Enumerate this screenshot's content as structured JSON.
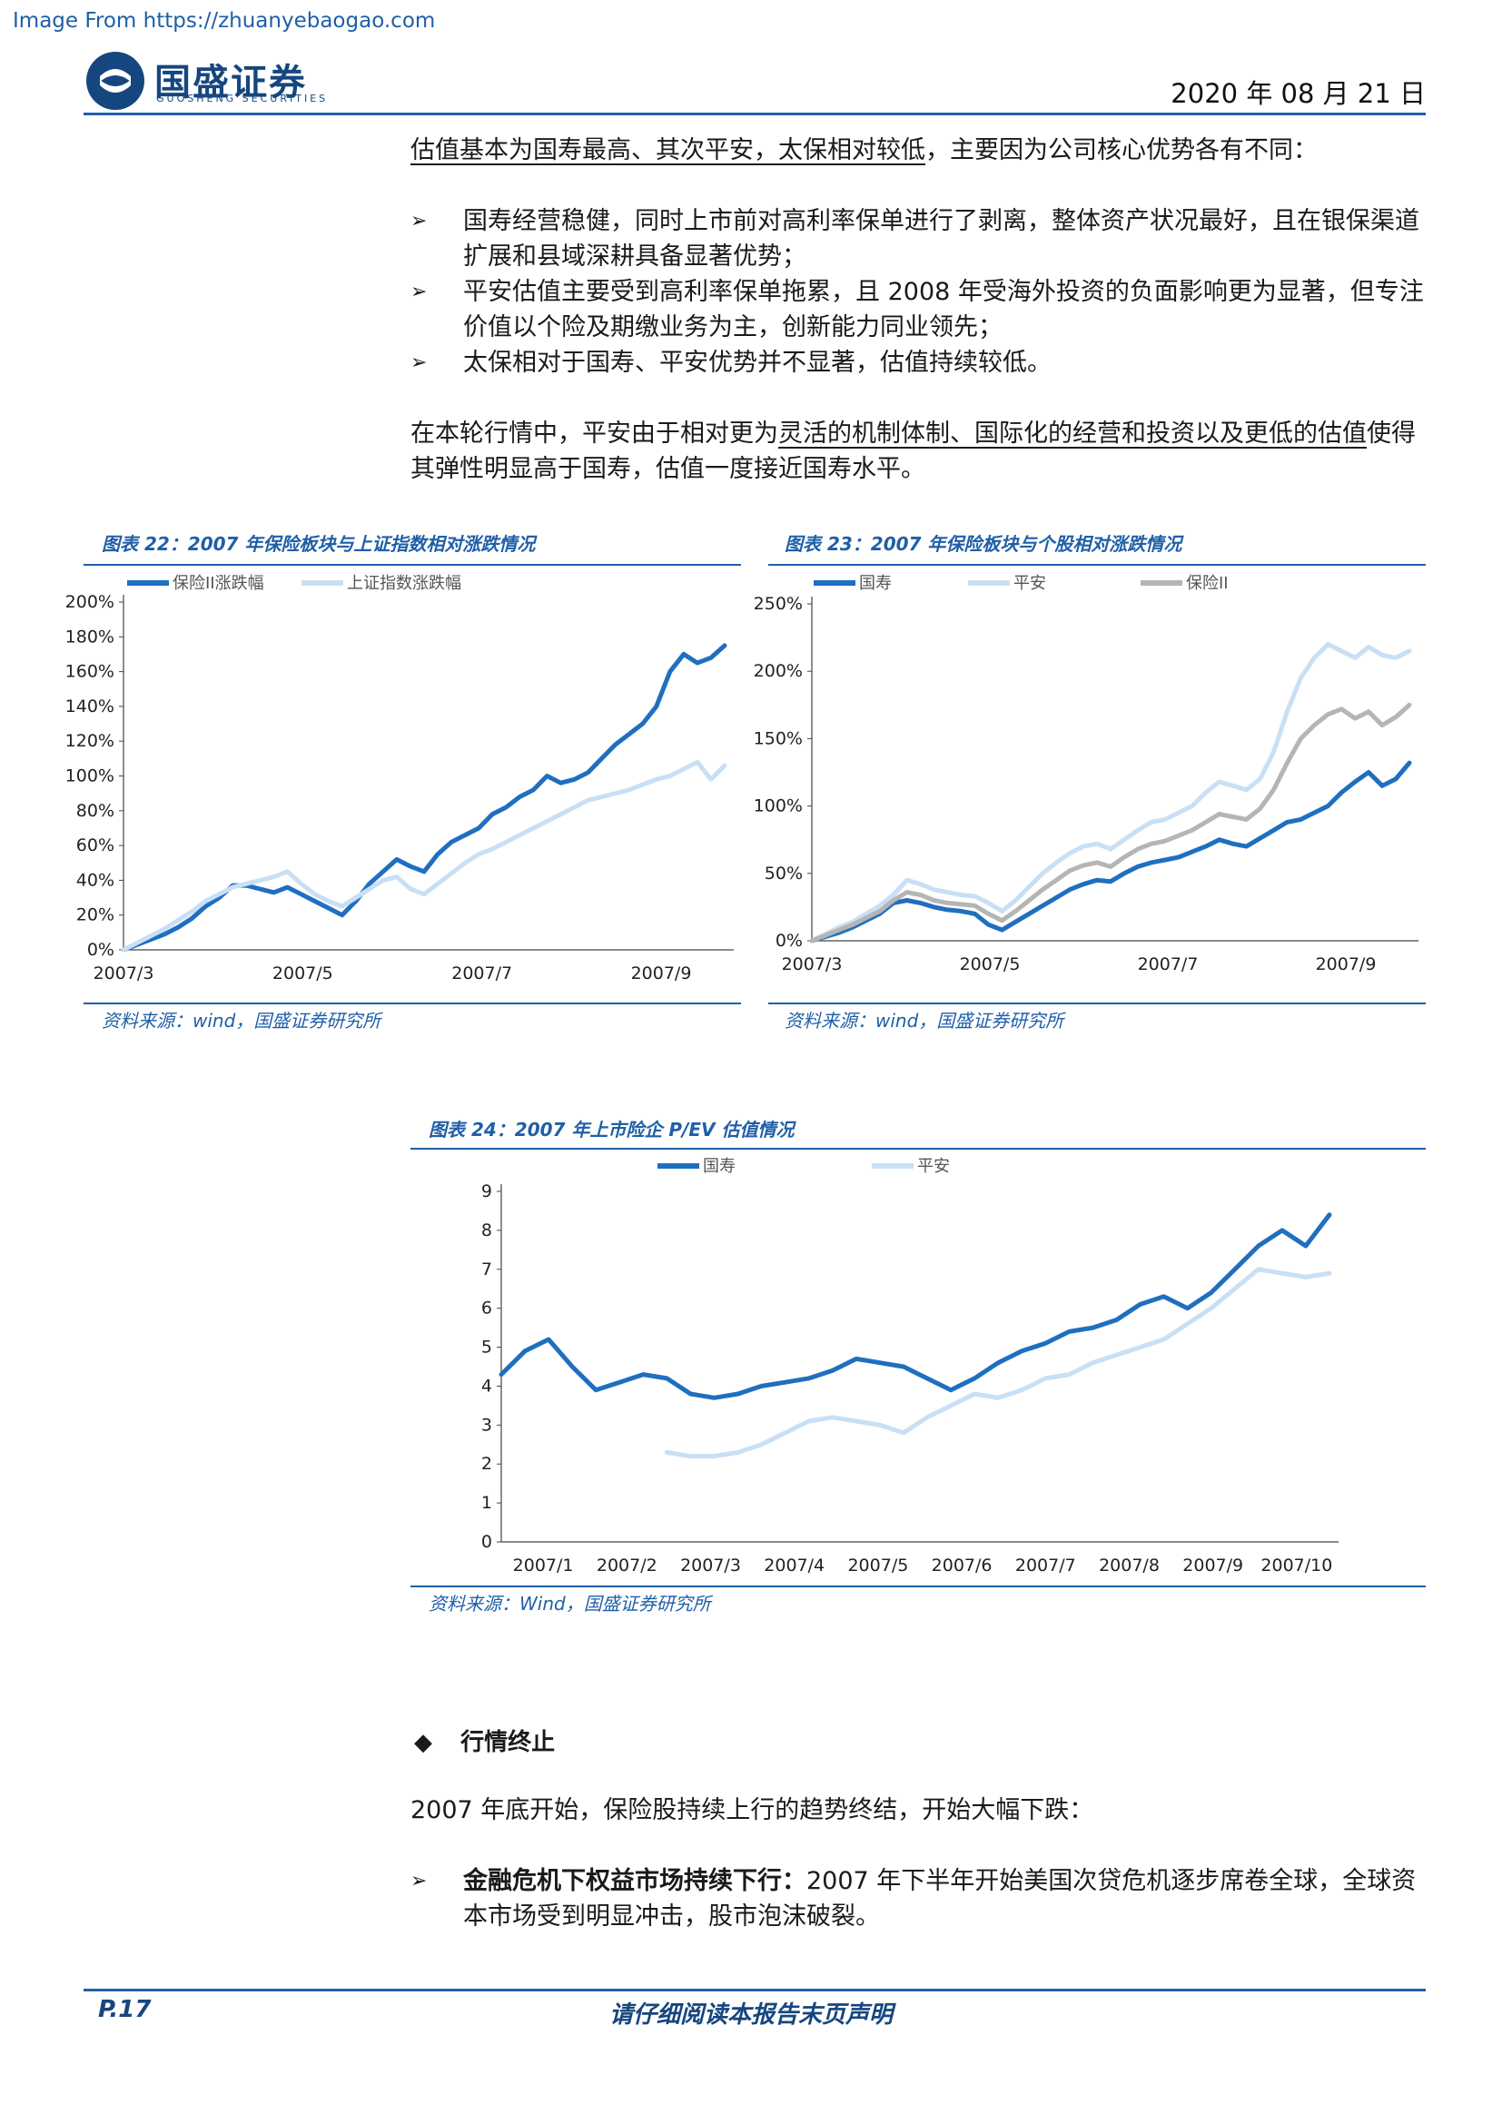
{
  "header": {
    "source_note": "Image From https://zhuanyebaogao.com",
    "logo_cn": "国盛证券",
    "logo_en": "GUOSHENG SECURITIES",
    "date": "2020 年 08 月 21 日"
  },
  "intro": {
    "underlined": "估值基本为国寿最高、其次平安，太保相对较低",
    "rest": "，主要因为公司核心优势各有不同："
  },
  "bullets1": [
    "国寿经营稳健，同时上市前对高利率保单进行了剥离，整体资产状况最好，且在银保渠道扩展和县域深耕具备显著优势；",
    "平安估值主要受到高利率保单拖累，且 2008 年受海外投资的负面影响更为显著，但专注价值以个险及期缴业务为主，创新能力同业领先；",
    "太保相对于国寿、平安优势并不显著，估值持续较低。"
  ],
  "para2": {
    "pre": "在本轮行情中，平安由于相对更为",
    "underlined": "灵活的机制体制、国际化的经营和投资以及更低的估值",
    "post": "使得其弹性明显高于国寿，估值一度接近国寿水平。"
  },
  "fig22": {
    "title": "图表 22：2007 年保险板块与上证指数相对涨跌情况",
    "source": "资料来源：wind，国盛证券研究所"
  },
  "fig23": {
    "title": "图表 23：2007 年保险板块与个股相对涨跌情况",
    "source": "资料来源：wind，国盛证券研究所"
  },
  "fig24": {
    "title": "图表 24：2007 年上市险企 P/EV 估值情况",
    "source": "资料来源：Wind，国盛证券研究所"
  },
  "chart_data": [
    {
      "type": "line",
      "x_labels": [
        "2007/3",
        "2007/5",
        "2007/7",
        "2007/9"
      ],
      "y_ticks": [
        "0%",
        "20%",
        "40%",
        "60%",
        "80%",
        "100%",
        "120%",
        "140%",
        "160%",
        "180%",
        "200%"
      ],
      "ylim": [
        0,
        200
      ],
      "legend_position": "top",
      "series": [
        {
          "name": "保险II涨跌幅",
          "color": "#1f6fc0",
          "values": [
            0,
            3,
            6,
            9,
            13,
            18,
            25,
            30,
            37,
            37,
            35,
            33,
            36,
            32,
            28,
            24,
            20,
            28,
            38,
            45,
            52,
            48,
            45,
            55,
            62,
            66,
            70,
            78,
            82,
            88,
            92,
            100,
            96,
            98,
            102,
            110,
            118,
            124,
            130,
            140,
            160,
            170,
            165,
            168,
            175
          ]
        },
        {
          "name": "上证指数涨跌幅",
          "color": "#c9dff5",
          "values": [
            0,
            4,
            8,
            12,
            17,
            22,
            28,
            32,
            36,
            38,
            40,
            42,
            45,
            38,
            32,
            28,
            25,
            30,
            35,
            40,
            42,
            35,
            32,
            38,
            44,
            50,
            55,
            58,
            62,
            66,
            70,
            74,
            78,
            82,
            86,
            88,
            90,
            92,
            95,
            98,
            100,
            104,
            108,
            98,
            106
          ]
        }
      ]
    },
    {
      "type": "line",
      "x_labels": [
        "2007/3",
        "2007/5",
        "2007/7",
        "2007/9"
      ],
      "y_ticks": [
        "0%",
        "50%",
        "100%",
        "150%",
        "200%",
        "250%"
      ],
      "ylim": [
        0,
        250
      ],
      "legend_position": "top",
      "series": [
        {
          "name": "国寿",
          "color": "#1f6fc0",
          "values": [
            0,
            3,
            6,
            10,
            15,
            20,
            28,
            30,
            28,
            25,
            23,
            22,
            20,
            12,
            8,
            14,
            20,
            26,
            32,
            38,
            42,
            45,
            44,
            50,
            55,
            58,
            60,
            62,
            66,
            70,
            75,
            72,
            70,
            76,
            82,
            88,
            90,
            95,
            100,
            110,
            118,
            125,
            115,
            120,
            132
          ]
        },
        {
          "name": "平安",
          "color": "#c9dff5",
          "values": [
            0,
            5,
            10,
            14,
            20,
            26,
            34,
            45,
            42,
            38,
            36,
            34,
            33,
            28,
            22,
            30,
            40,
            50,
            58,
            65,
            70,
            72,
            68,
            75,
            82,
            88,
            90,
            95,
            100,
            110,
            118,
            115,
            112,
            120,
            140,
            170,
            195,
            210,
            220,
            215,
            210,
            218,
            212,
            210,
            215
          ]
        },
        {
          "name": "保险II",
          "color": "#b5b5b5",
          "values": [
            0,
            4,
            8,
            12,
            17,
            22,
            30,
            36,
            34,
            30,
            28,
            27,
            26,
            20,
            15,
            22,
            30,
            38,
            45,
            52,
            56,
            58,
            55,
            62,
            68,
            72,
            74,
            78,
            82,
            88,
            94,
            92,
            90,
            98,
            112,
            132,
            150,
            160,
            168,
            172,
            165,
            170,
            160,
            166,
            175
          ]
        }
      ]
    },
    {
      "type": "line",
      "x_labels": [
        "2007/1",
        "2007/2",
        "2007/3",
        "2007/4",
        "2007/5",
        "2007/6",
        "2007/7",
        "2007/8",
        "2007/9",
        "2007/10"
      ],
      "y_ticks": [
        "0",
        "1",
        "2",
        "3",
        "4",
        "5",
        "6",
        "7",
        "8",
        "9"
      ],
      "ylim": [
        0,
        9
      ],
      "legend_position": "top",
      "series": [
        {
          "name": "国寿",
          "color": "#1f6fc0",
          "values": [
            4.3,
            4.9,
            5.2,
            4.5,
            3.9,
            4.1,
            4.3,
            4.2,
            3.8,
            3.7,
            3.8,
            4.0,
            4.1,
            4.2,
            4.4,
            4.7,
            4.6,
            4.5,
            4.2,
            3.9,
            4.2,
            4.6,
            4.9,
            5.1,
            5.4,
            5.5,
            5.7,
            6.1,
            6.3,
            6.0,
            6.4,
            7.0,
            7.6,
            8.0,
            7.6,
            8.4
          ]
        },
        {
          "name": "平安",
          "color": "#c9dff5",
          "values": [
            null,
            null,
            null,
            null,
            null,
            null,
            null,
            2.3,
            2.2,
            2.2,
            2.3,
            2.5,
            2.8,
            3.1,
            3.2,
            3.1,
            3.0,
            2.8,
            3.2,
            3.5,
            3.8,
            3.7,
            3.9,
            4.2,
            4.3,
            4.6,
            4.8,
            5.0,
            5.2,
            5.6,
            6.0,
            6.5,
            7.0,
            6.9,
            6.8,
            6.9
          ]
        }
      ]
    }
  ],
  "section": {
    "marker": "◆",
    "title": "行情终止"
  },
  "para3": "2007 年底开始，保险股持续上行的趋势终结，开始大幅下跌：",
  "bullet_final": {
    "bold": "金融危机下权益市场持续下行：",
    "rest": "2007 年下半年开始美国次贷危机逐步席卷全球，全球资本市场受到明显冲击，股市泡沫破裂。"
  },
  "footer": {
    "page": "P.17",
    "center": "请仔细阅读本报告末页声明"
  }
}
